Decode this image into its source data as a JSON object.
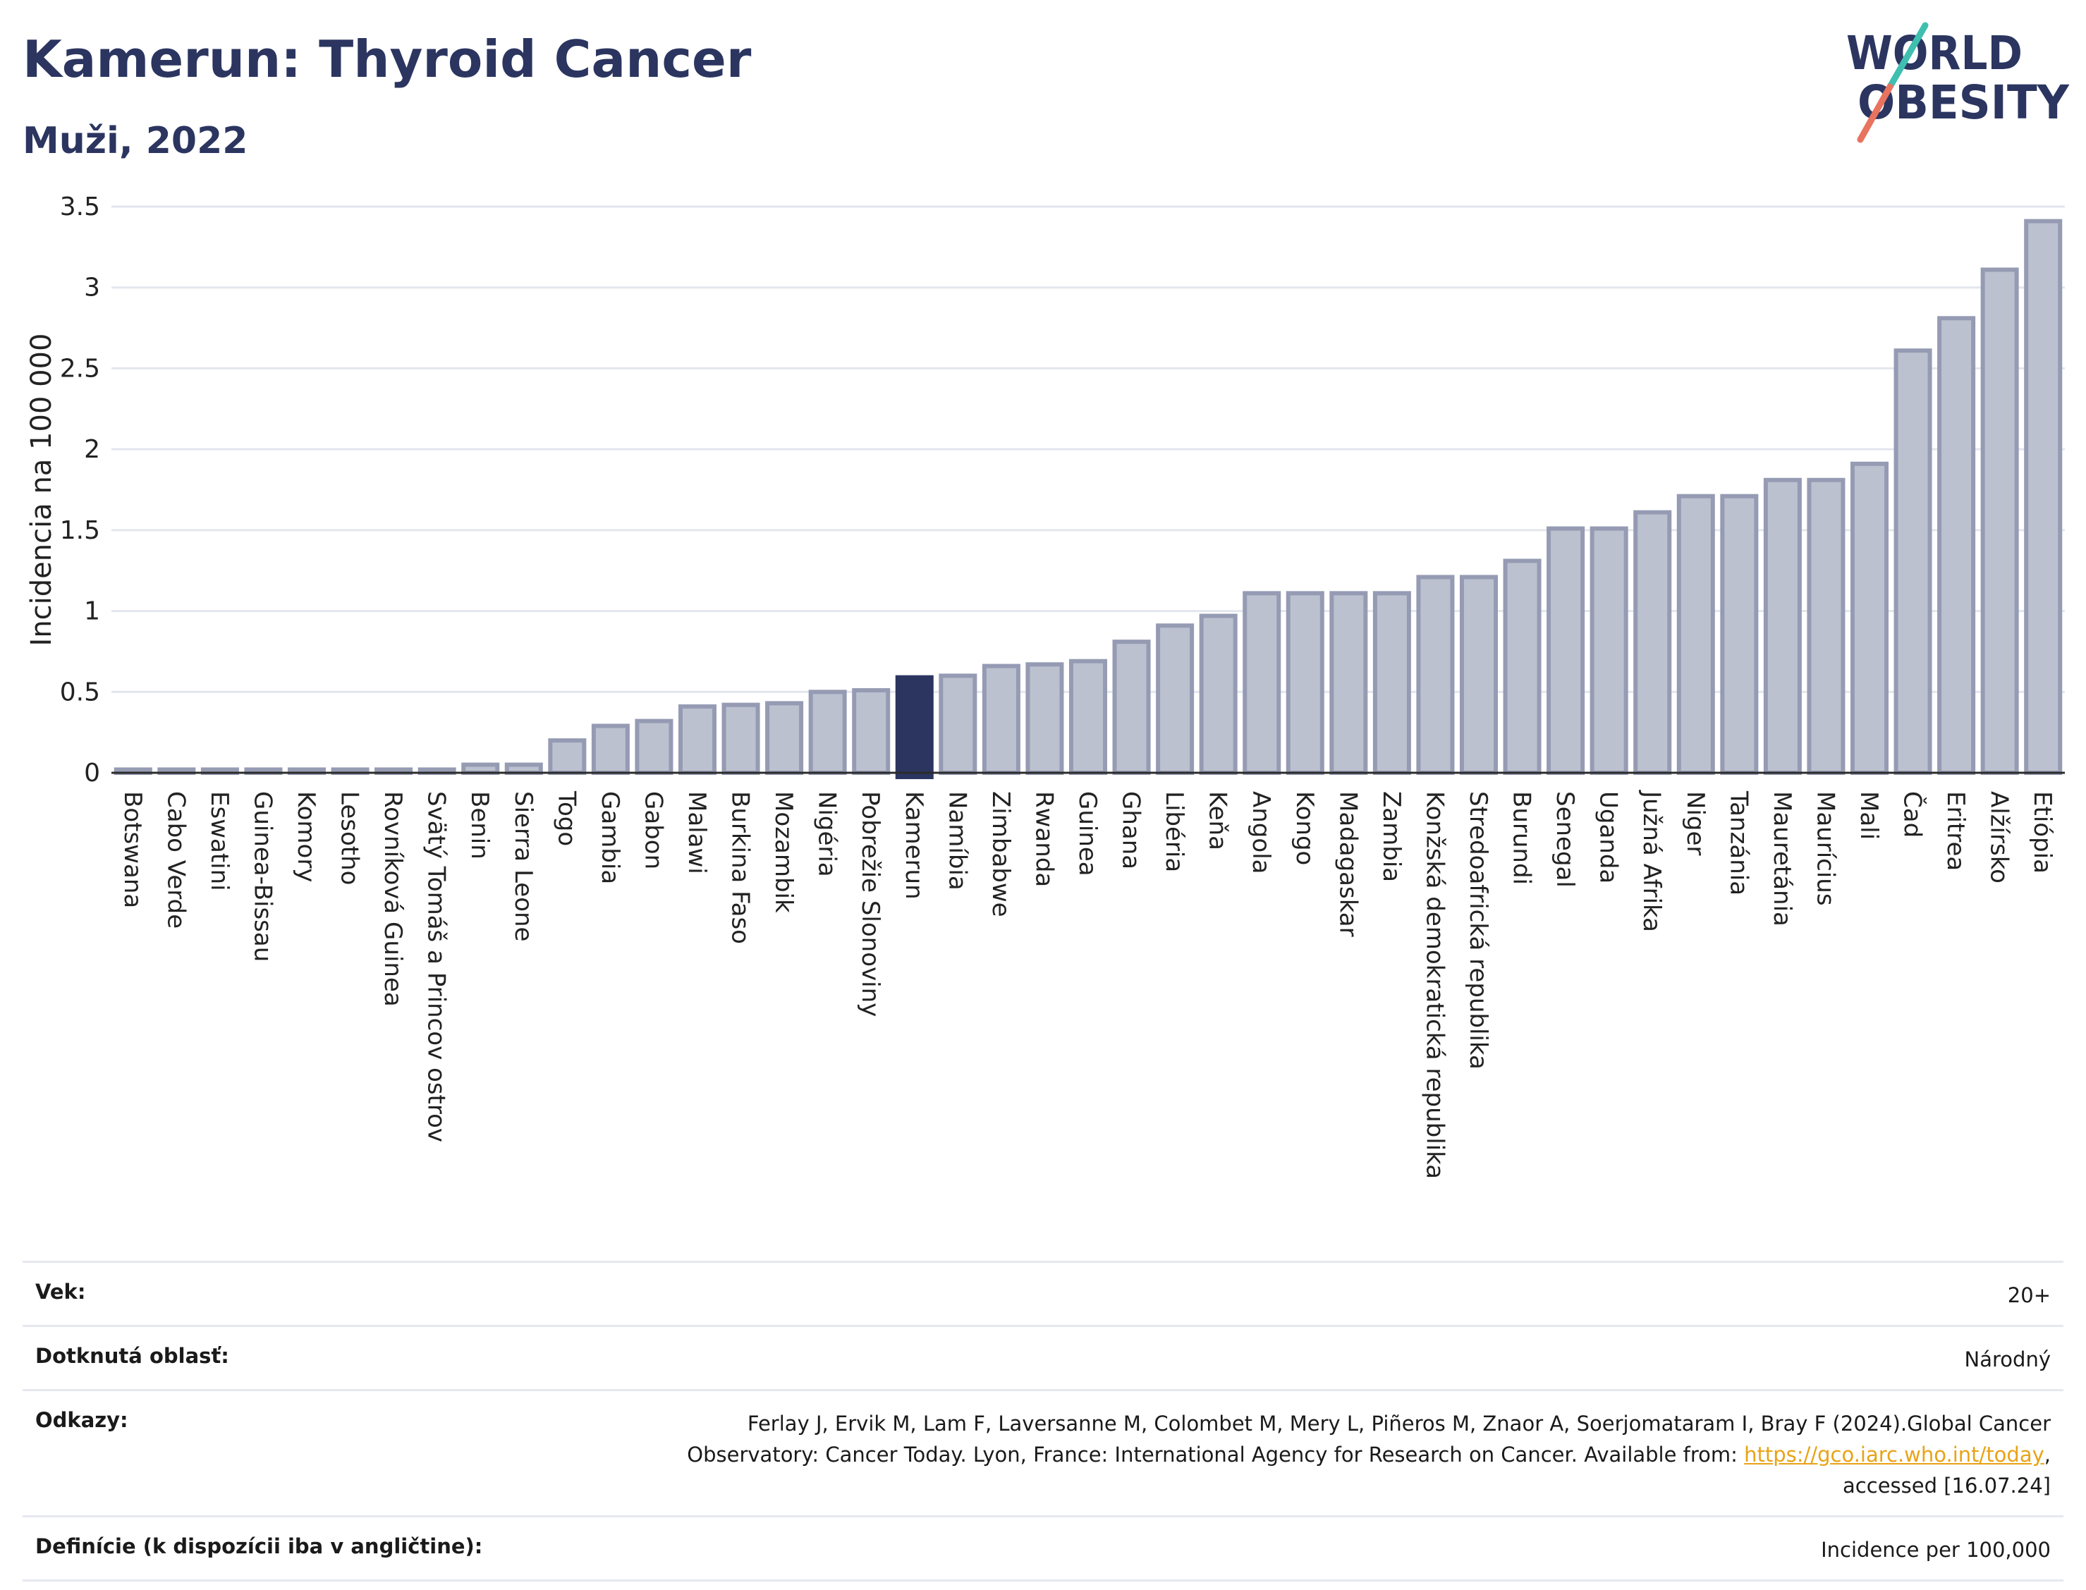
{
  "header": {
    "title": "Kamerun: Thyroid Cancer",
    "subtitle": "Muži, 2022"
  },
  "logo": {
    "line1": "WORLD",
    "line2": "OBESITY",
    "colors": {
      "text": "#2b3560",
      "slash_top": "#3fbfb0",
      "slash_bottom": "#e8735f"
    }
  },
  "chart_data": {
    "type": "bar",
    "ylabel": "Incidencia na 100 000",
    "xlabel": "",
    "ylim": [
      0,
      3.5
    ],
    "yticks": [
      0,
      0.5,
      1,
      1.5,
      2,
      2.5,
      3,
      3.5
    ],
    "ytick_labels": [
      "0",
      "0.5",
      "1",
      "1.5",
      "2",
      "2.5",
      "3",
      "3.5"
    ],
    "grid": true,
    "highlight": "Kamerun",
    "colors": {
      "bar": "#bcc1d0",
      "bar_edge": "#959bb3",
      "highlight": "#2b3560"
    },
    "categories": [
      "Botswana",
      "Cabo Verde",
      "Eswatini",
      "Guinea-Bissau",
      "Komory",
      "Lesotho",
      "Rovníková Guinea",
      "Svätý Tomáš a Princov ostrov",
      "Benin",
      "Sierra Leone",
      "Togo",
      "Gambia",
      "Gabon",
      "Malawi",
      "Burkina Faso",
      "Mozambik",
      "Nigéria",
      "Pobrežie Slonoviny",
      "Kamerun",
      "Namíbia",
      "Zimbabwe",
      "Rwanda",
      "Guinea",
      "Ghana",
      "Libéria",
      "Keňa",
      "Angola",
      "Kongo",
      "Madagaskar",
      "Zambia",
      "Konžská demokratická republika",
      "Stredoafrická republika",
      "Burundi",
      "Senegal",
      "Uganda",
      "Južná Afrika",
      "Niger",
      "Tanzánia",
      "Mauretánia",
      "Maurícius",
      "Mali",
      "Čad",
      "Eritrea",
      "Alžírsko",
      "Etiópia"
    ],
    "values": [
      0.02,
      0.02,
      0.02,
      0.02,
      0.02,
      0.02,
      0.02,
      0.02,
      0.05,
      0.05,
      0.2,
      0.29,
      0.32,
      0.41,
      0.42,
      0.43,
      0.5,
      0.51,
      0.59,
      0.6,
      0.66,
      0.67,
      0.69,
      0.81,
      0.91,
      0.97,
      1.11,
      1.11,
      1.11,
      1.11,
      1.21,
      1.21,
      1.31,
      1.51,
      1.51,
      1.61,
      1.71,
      1.71,
      1.81,
      1.81,
      1.91,
      2.61,
      2.81,
      3.11,
      3.41
    ]
  },
  "info": {
    "age_label": "Vek:",
    "age_value": "20+",
    "area_label": "Dotknutá oblasť:",
    "area_value": "Národný",
    "refs_label": "Odkazy:",
    "refs_line1": "Ferlay J, Ervik M, Lam F, Laversanne M, Colombet M, Mery L, Piñeros M, Znaor A, Soerjomataram I, Bray F (2024).Global Cancer",
    "refs_line2_prefix": "Observatory: Cancer Today. Lyon, France: International Agency for Research on Cancer. Available from: ",
    "refs_link": "https://gco.iarc.who.int/today",
    "refs_line2_suffix": ",",
    "refs_line3": "accessed [16.07.24]",
    "def_label": "Definície (k dispozícii iba v angličtine):",
    "def_value": "Incidence per 100,000"
  }
}
